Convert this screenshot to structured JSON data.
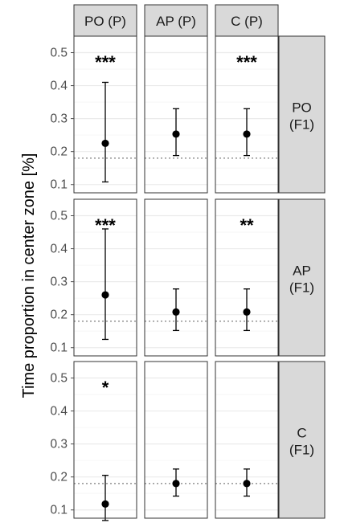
{
  "chart_data": {
    "type": "scatter",
    "title": "",
    "ylabel": "Time proportion in center zone [%]",
    "ylim": [
      0.075,
      0.55
    ],
    "yticks": [
      0.1,
      0.2,
      0.3,
      0.4,
      0.5
    ],
    "ytick_labels": [
      "0.1",
      "0.2",
      "0.3",
      "0.4",
      "0.5"
    ],
    "reference_line": 0.18,
    "grid": true,
    "col_facets": [
      "PO (P)",
      "AP (P)",
      "C (P)"
    ],
    "row_facets": [
      [
        "PO",
        "(F1)"
      ],
      [
        "AP",
        "(F1)"
      ],
      [
        "C",
        "(F1)"
      ]
    ],
    "panels": [
      {
        "row": 0,
        "col": 0,
        "mean": 0.225,
        "lower": 0.108,
        "upper": 0.41,
        "significance": "***"
      },
      {
        "row": 0,
        "col": 1,
        "mean": 0.253,
        "lower": 0.188,
        "upper": 0.33,
        "significance": ""
      },
      {
        "row": 0,
        "col": 2,
        "mean": 0.253,
        "lower": 0.188,
        "upper": 0.33,
        "significance": "***"
      },
      {
        "row": 1,
        "col": 0,
        "mean": 0.26,
        "lower": 0.125,
        "upper": 0.46,
        "significance": "***"
      },
      {
        "row": 1,
        "col": 1,
        "mean": 0.208,
        "lower": 0.152,
        "upper": 0.278,
        "significance": ""
      },
      {
        "row": 1,
        "col": 2,
        "mean": 0.208,
        "lower": 0.152,
        "upper": 0.278,
        "significance": "**"
      },
      {
        "row": 2,
        "col": 0,
        "mean": 0.118,
        "lower": 0.068,
        "upper": 0.205,
        "significance": "*"
      },
      {
        "row": 2,
        "col": 1,
        "mean": 0.18,
        "lower": 0.142,
        "upper": 0.224,
        "significance": ""
      },
      {
        "row": 2,
        "col": 2,
        "mean": 0.18,
        "lower": 0.142,
        "upper": 0.224,
        "significance": ""
      }
    ]
  },
  "colors": {
    "strip_fill": "#d9d9d9",
    "panel_border": "#333333",
    "major_grid": "#ebebeb",
    "minor_grid": "#f5f5f5",
    "reference_line": "#7f7f7f",
    "point": "#000000",
    "tick_text": "#4d4d4d"
  }
}
